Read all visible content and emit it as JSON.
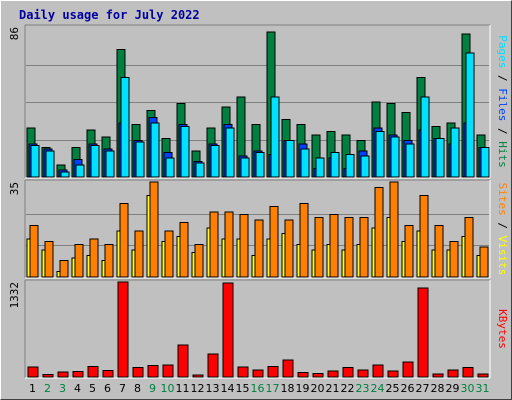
{
  "chart_data": {
    "type": "bar",
    "title": "Daily usage for July 2022",
    "categories": [
      "1",
      "2",
      "3",
      "4",
      "5",
      "6",
      "7",
      "8",
      "9",
      "10",
      "11",
      "12",
      "13",
      "14",
      "15",
      "16",
      "17",
      "18",
      "19",
      "20",
      "21",
      "22",
      "23",
      "24",
      "25",
      "26",
      "27",
      "28",
      "29",
      "30",
      "31"
    ],
    "weekend_days": [
      "2",
      "3",
      "9",
      "10",
      "16",
      "17",
      "23",
      "24",
      "30",
      "31"
    ],
    "colors": {
      "hits": "#008040",
      "files": "#0040ff",
      "pages": "#00e0ff",
      "visits": "#ffff00",
      "sites": "#ff8000",
      "kbytes": "#ff0000",
      "weekday_label": "#000000",
      "weekend_label": "#008040"
    },
    "panels": [
      {
        "name": "hits-files-pages",
        "ytick_label": "86",
        "ymax": 86,
        "side_labels": [
          {
            "text": "Pages",
            "color": "#00e0ff"
          },
          {
            "text": " / ",
            "color": "#000000"
          },
          {
            "text": "Files",
            "color": "#0040ff"
          },
          {
            "text": " / ",
            "color": "#000000"
          },
          {
            "text": "Hits",
            "color": "#008040"
          }
        ],
        "series": [
          {
            "name": "Hits",
            "color": "#008040",
            "values": [
              28,
              17,
              7,
              17,
              27,
              23,
              73,
              30,
              38,
              22,
              42,
              15,
              28,
              40,
              46,
              30,
              83,
              33,
              30,
              24,
              26,
              24,
              21,
              43,
              42,
              37,
              57,
              29,
              31,
              82,
              24
            ]
          },
          {
            "name": "Files",
            "color": "#0040ff",
            "values": [
              19,
              16,
              4,
              10,
              19,
              16,
              31,
              21,
              34,
              14,
              30,
              9,
              19,
              30,
              12,
              15,
              13,
              21,
              19,
              5,
              11,
              5,
              15,
              28,
              24,
              21,
              27,
              22,
              19,
              31,
              17
            ]
          },
          {
            "name": "Pages",
            "color": "#00e0ff",
            "values": [
              18,
              15,
              3,
              7,
              18,
              15,
              57,
              20,
              31,
              11,
              29,
              8,
              18,
              28,
              11,
              14,
              46,
              21,
              16,
              11,
              14,
              13,
              12,
              26,
              23,
              19,
              46,
              22,
              28,
              71,
              17
            ]
          }
        ]
      },
      {
        "name": "visits-sites",
        "ytick_label": "35",
        "ymax": 35,
        "side_labels": [
          {
            "text": "Sites",
            "color": "#ff8000"
          },
          {
            "text": " / ",
            "color": "#000000"
          },
          {
            "text": "Visits",
            "color": "#ffff00"
          }
        ],
        "series": [
          {
            "name": "Visits",
            "color": "#ffff00",
            "values": [
              14,
              10,
              2,
              7,
              8,
              6,
              17,
              10,
              30,
              13,
              15,
              9,
              18,
              14,
              14,
              8,
              14,
              16,
              12,
              10,
              12,
              10,
              12,
              18,
              22,
              13,
              17,
              10,
              10,
              15,
              8
            ]
          },
          {
            "name": "Sites",
            "color": "#ff8000",
            "values": [
              19,
              13,
              6,
              12,
              14,
              12,
              27,
              17,
              35,
              17,
              20,
              12,
              24,
              24,
              23,
              21,
              26,
              21,
              27,
              22,
              23,
              22,
              22,
              33,
              35,
              19,
              30,
              19,
              13,
              22,
              11
            ]
          }
        ]
      },
      {
        "name": "kbytes",
        "ytick_label": "1332",
        "ymax": 1332,
        "side_labels": [
          {
            "text": "KBytes",
            "color": "#ff0000"
          }
        ],
        "series": [
          {
            "name": "KBytes",
            "color": "#ff0000",
            "values": [
              140,
              35,
              70,
              75,
              145,
              90,
              1332,
              130,
              160,
              165,
              450,
              25,
              325,
              1315,
              140,
              95,
              145,
              235,
              65,
              50,
              85,
              135,
              95,
              170,
              85,
              210,
              1245,
              45,
              95,
              135,
              45
            ]
          }
        ]
      }
    ]
  }
}
